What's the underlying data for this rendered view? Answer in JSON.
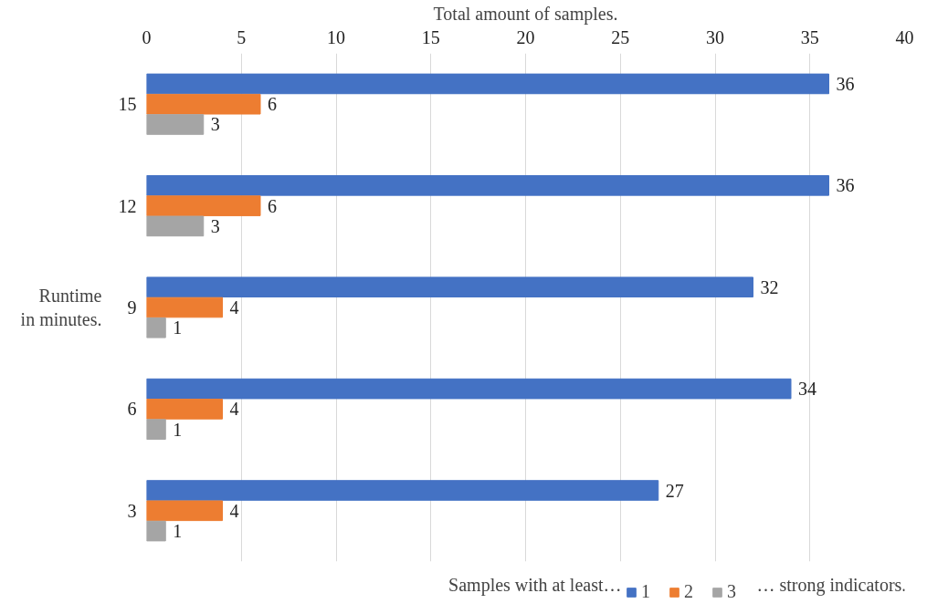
{
  "chart_data": {
    "type": "bar",
    "orientation": "horizontal",
    "xlabel": "Total amount of samples.",
    "ylabel": "Runtime\nin minutes.",
    "legend_title": "Samples with at least…",
    "annotations": [
      "… strong indicators."
    ],
    "categories": [
      "15",
      "12",
      "9",
      "6",
      "3"
    ],
    "series": [
      {
        "name": "1",
        "color": "#4472c4",
        "values": [
          36,
          36,
          32,
          34,
          27
        ]
      },
      {
        "name": "2",
        "color": "#ed7d31",
        "values": [
          6,
          6,
          4,
          4,
          4
        ]
      },
      {
        "name": "3",
        "color": "#a5a5a5",
        "values": [
          3,
          3,
          1,
          1,
          1
        ]
      }
    ],
    "xlim": [
      0,
      40
    ],
    "xticks": [
      0,
      5,
      10,
      15,
      20,
      25,
      30,
      35,
      40
    ],
    "grid": "x",
    "legend": "bottom",
    "data_labels": true
  }
}
